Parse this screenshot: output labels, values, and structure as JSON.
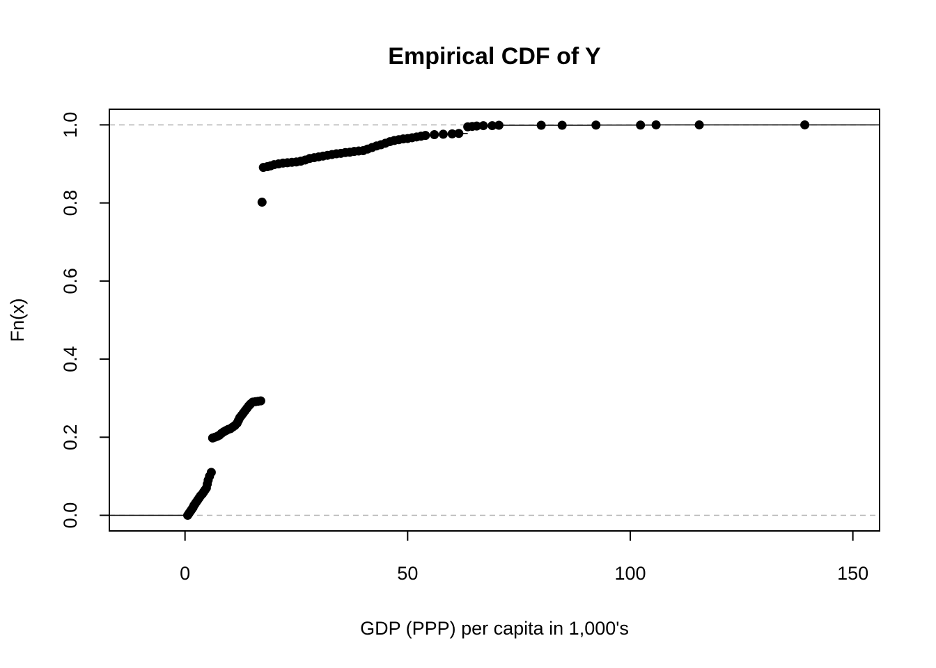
{
  "chart_data": {
    "type": "scatter",
    "subtype": "ecdf",
    "title": "Empirical CDF of Y",
    "xlabel": "GDP (PPP) per capita in 1,000's",
    "ylabel": "Fn(x)",
    "xlim": [
      -17,
      156
    ],
    "ylim": [
      -0.04,
      1.04
    ],
    "x_ticks": [
      0,
      50,
      100,
      150
    ],
    "x_tick_labels": [
      "0",
      "50",
      "100",
      "150"
    ],
    "y_ticks": [
      0.0,
      0.2,
      0.4,
      0.6,
      0.8,
      1.0
    ],
    "y_tick_labels": [
      "0.0",
      "0.2",
      "0.4",
      "0.6",
      "0.8",
      "1.0"
    ],
    "reference_lines": [
      0,
      1
    ],
    "grid": false,
    "legend": "none",
    "points": [
      [
        0.6,
        0.0
      ],
      [
        0.9,
        0.005
      ],
      [
        1.2,
        0.01
      ],
      [
        1.5,
        0.015
      ],
      [
        1.8,
        0.02
      ],
      [
        2.0,
        0.025
      ],
      [
        2.3,
        0.03
      ],
      [
        2.6,
        0.035
      ],
      [
        2.9,
        0.04
      ],
      [
        3.2,
        0.045
      ],
      [
        3.5,
        0.05
      ],
      [
        3.9,
        0.055
      ],
      [
        4.2,
        0.06
      ],
      [
        4.5,
        0.065
      ],
      [
        4.8,
        0.07
      ],
      [
        5.0,
        0.08
      ],
      [
        5.2,
        0.09
      ],
      [
        5.5,
        0.1
      ],
      [
        5.9,
        0.11
      ],
      [
        6.2,
        0.198
      ],
      [
        6.7,
        0.2
      ],
      [
        7.2,
        0.202
      ],
      [
        7.7,
        0.205
      ],
      [
        8.2,
        0.21
      ],
      [
        8.7,
        0.214
      ],
      [
        9.2,
        0.217
      ],
      [
        9.7,
        0.22
      ],
      [
        10.2,
        0.222
      ],
      [
        10.7,
        0.226
      ],
      [
        11.2,
        0.23
      ],
      [
        11.7,
        0.236
      ],
      [
        12.0,
        0.243
      ],
      [
        12.3,
        0.25
      ],
      [
        12.7,
        0.256
      ],
      [
        13.1,
        0.262
      ],
      [
        13.5,
        0.268
      ],
      [
        13.9,
        0.274
      ],
      [
        14.3,
        0.28
      ],
      [
        14.7,
        0.285
      ],
      [
        15.2,
        0.29
      ],
      [
        15.8,
        0.291
      ],
      [
        16.4,
        0.292
      ],
      [
        17.0,
        0.293
      ],
      [
        17.3,
        0.802
      ],
      [
        17.6,
        0.891
      ],
      [
        18.5,
        0.893
      ],
      [
        19.2,
        0.895
      ],
      [
        20.0,
        0.898
      ],
      [
        21.0,
        0.9
      ],
      [
        22.0,
        0.902
      ],
      [
        23.0,
        0.903
      ],
      [
        24.0,
        0.904
      ],
      [
        25.0,
        0.905
      ],
      [
        26.0,
        0.907
      ],
      [
        27.0,
        0.91
      ],
      [
        28.0,
        0.914
      ],
      [
        29.0,
        0.916
      ],
      [
        30.0,
        0.918
      ],
      [
        31.0,
        0.92
      ],
      [
        32.0,
        0.922
      ],
      [
        33.0,
        0.924
      ],
      [
        34.0,
        0.926
      ],
      [
        35.0,
        0.927
      ],
      [
        36.0,
        0.929
      ],
      [
        37.0,
        0.93
      ],
      [
        38.0,
        0.932
      ],
      [
        39.0,
        0.933
      ],
      [
        40.0,
        0.934
      ],
      [
        41.0,
        0.938
      ],
      [
        42.0,
        0.942
      ],
      [
        43.0,
        0.946
      ],
      [
        44.0,
        0.949
      ],
      [
        45.0,
        0.953
      ],
      [
        46.0,
        0.957
      ],
      [
        47.0,
        0.96
      ],
      [
        48.0,
        0.962
      ],
      [
        49.0,
        0.964
      ],
      [
        50.0,
        0.965
      ],
      [
        51.0,
        0.967
      ],
      [
        52.0,
        0.969
      ],
      [
        53.0,
        0.971
      ],
      [
        54.0,
        0.973
      ],
      [
        56.0,
        0.975
      ],
      [
        58.0,
        0.976
      ],
      [
        60.0,
        0.977
      ],
      [
        61.5,
        0.978
      ],
      [
        63.5,
        0.995
      ],
      [
        64.5,
        0.996
      ],
      [
        65.5,
        0.997
      ],
      [
        67.0,
        0.998
      ],
      [
        69.0,
        0.998
      ],
      [
        70.5,
        0.999
      ],
      [
        80.0,
        0.999
      ],
      [
        84.7,
        0.999
      ],
      [
        92.3,
        0.9995
      ],
      [
        102.3,
        0.9995
      ],
      [
        105.8,
        1.0
      ],
      [
        115.5,
        1.0
      ],
      [
        139.2,
        1.0
      ]
    ]
  }
}
